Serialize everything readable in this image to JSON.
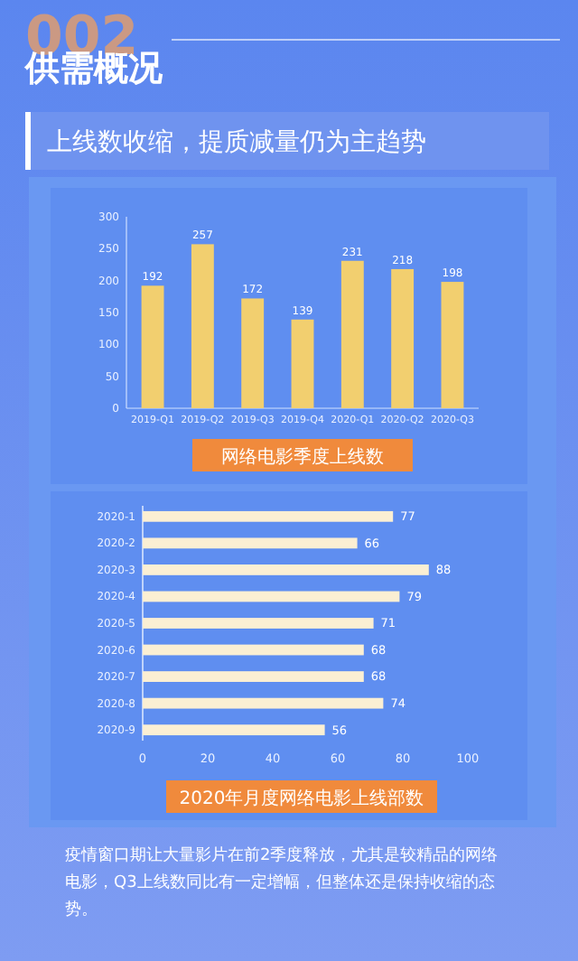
{
  "chart_data": [
    {
      "type": "bar",
      "title": "供需概况",
      "subtitle": "上线数收缩，提质减量仍为主趋势",
      "annotations": [
        "002"
      ],
      "xlabel": "网络电影季度上线数",
      "categories": [
        "2019-Q1",
        "2019-Q2",
        "2019-Q3",
        "2019-Q4",
        "2020-Q1",
        "2020-Q2",
        "2020-Q3"
      ],
      "values": [
        192,
        257,
        172,
        139,
        231,
        218,
        198
      ],
      "color": "#f2cf6f",
      "ylim": [
        0,
        300
      ],
      "yticks": [
        0,
        50,
        100,
        150,
        200,
        250,
        300
      ],
      "data_labels": true
    },
    {
      "type": "bar",
      "orientation": "horizontal",
      "xlabel": "2020年月度网络电影上线部数",
      "annotations": [
        "疫情窗口期让大量影片在前2季度释放，尤其是较精品的网络电影，Q3上线数同比有一定增幅，但整体还是保持收缩的态势。"
      ],
      "categories": [
        "2020-1",
        "2020-2",
        "2020-3",
        "2020-4",
        "2020-5",
        "2020-6",
        "2020-7",
        "2020-8",
        "2020-9"
      ],
      "values": [
        77,
        66,
        88,
        79,
        71,
        68,
        68,
        74,
        56
      ],
      "color": "#fbefd3",
      "xlim": [
        0,
        100
      ],
      "xticks": [
        0,
        20,
        40,
        60,
        80,
        100
      ],
      "data_labels": true
    }
  ]
}
